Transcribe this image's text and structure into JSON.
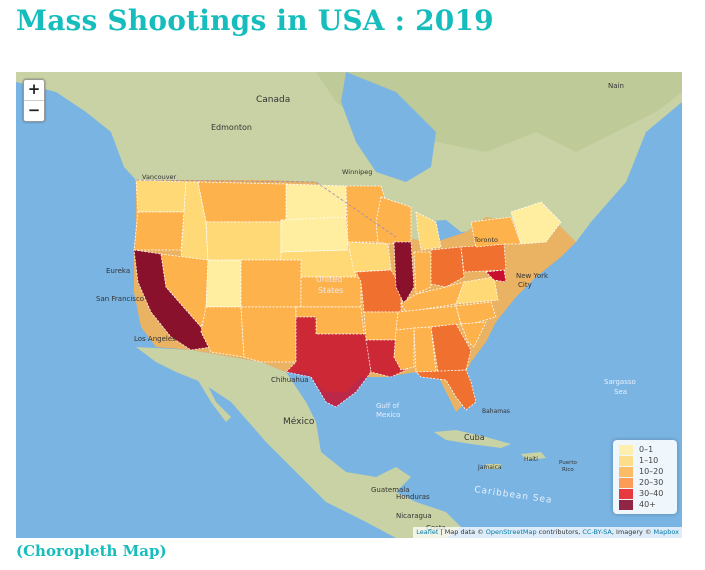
{
  "page": {
    "title": "Mass Shootings in USA : 2019",
    "footer": "(Choropleth Map)"
  },
  "zoom": {
    "in": "+",
    "out": "−"
  },
  "legend": {
    "items": [
      {
        "label": "0–1",
        "color": "#ffeda0"
      },
      {
        "label": "1–10",
        "color": "#fed976"
      },
      {
        "label": "10–20",
        "color": "#feb24c"
      },
      {
        "label": "20–30",
        "color": "#fd8d3c"
      },
      {
        "label": "30–40",
        "color": "#e31a1c"
      },
      {
        "label": "40+",
        "color": "#800026"
      }
    ]
  },
  "attribution": {
    "leaflet": "Leaflet",
    "sep": " | Map data © ",
    "osm": "OpenStreetMap",
    "contrib": " contributors, ",
    "license": "CC-BY-SA",
    "imagery": ", Imagery © ",
    "mapbox": "Mapbox"
  },
  "place_labels": {
    "canada": "Canada",
    "edmonton": "Edmonton",
    "vancouver": "Vancouver",
    "winnipeg": "Winnipeg",
    "toronto": "Toronto",
    "new_york": "New York",
    "city": "City",
    "united": "United",
    "states": "States",
    "eureka": "Eureka",
    "san_francisco": "San Francisco",
    "los_angeles": "Los Angeles",
    "chihuahua": "Chihuahua",
    "mexico": "México",
    "gulf_of": "Gulf of",
    "gulf_mexico": "Mexico",
    "cuba": "Cuba",
    "bahamas": "Bahamas",
    "haiti": "Haiti",
    "jamaica": "Jamaica",
    "puerto_rico": "Puerto",
    "puerto_rico2": "Rico",
    "guatemala": "Guatemala",
    "honduras": "Honduras",
    "nicaragua": "Nicaragua",
    "costa": "Costa",
    "caribbean": "Caribbean Sea",
    "sargasso": "Sargasso",
    "sargasso2": "Sea",
    "nain": "Nain"
  },
  "state_shootings": {
    "California": "40+",
    "Illinois": "40+",
    "Texas": "30–40",
    "Louisiana": "30–40",
    "Missouri": "20–30",
    "Ohio": "20–30",
    "Pennsylvania": "20–30",
    "Georgia": "20–30",
    "Florida": "20–30",
    "Maryland": "30–40"
  }
}
